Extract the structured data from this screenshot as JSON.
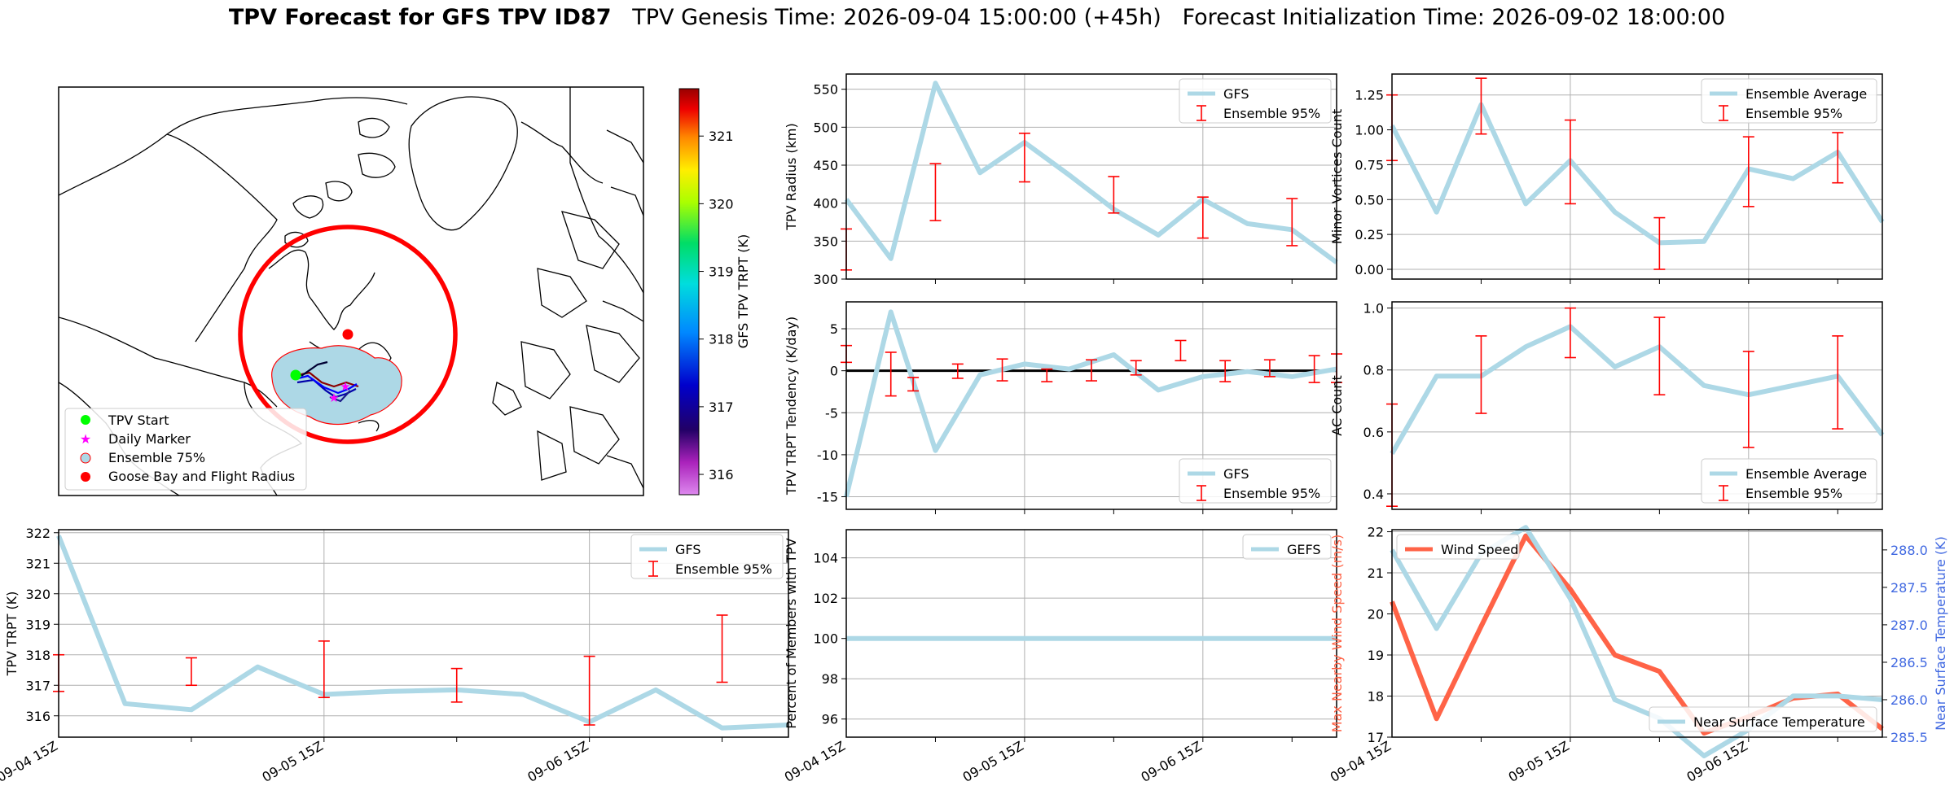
{
  "title": {
    "bold": "TPV Forecast for GFS TPV ID87",
    "genesis": "TPV Genesis Time: 2026-09-04 15:00:00 (+45h)",
    "init": "Forecast Initialization Time: 2026-09-02 18:00:00"
  },
  "colors": {
    "gfs": "#add8e6",
    "errorbar": "#ff0000",
    "wind": "#ff6347",
    "temp_axis": "#4169e1",
    "ring": "#ff0000",
    "start": "#00ff00",
    "daily": "#ff00ff",
    "ensemble75_fill": "#add8e6",
    "ensemble75_edge": "#ff0000",
    "goose_bay": "#ff0000"
  },
  "map": {
    "legend": [
      "TPV Start",
      "Daily Marker",
      "Ensemble 75%",
      "Goose Bay and Flight Radius"
    ],
    "colorbar": {
      "label": "GFS TPV TRPT (K)",
      "ticks": [
        316,
        317,
        318,
        319,
        320,
        321
      ],
      "range": [
        315.7,
        321.7
      ]
    }
  },
  "chart_data": [
    {
      "id": "radius",
      "type": "line",
      "ylabel": "TPV Radius (km)",
      "ylim": [
        300,
        570
      ],
      "yticks": [
        300,
        350,
        400,
        450,
        500,
        550
      ],
      "grid": true,
      "legend_position": "upper right",
      "series": [
        {
          "name": "GFS",
          "x": [
            0,
            0.25,
            0.5,
            0.75,
            1.0,
            1.25,
            1.5,
            1.75,
            2.0,
            2.25,
            2.5,
            2.75
          ],
          "y": [
            405,
            327,
            558,
            440,
            480,
            437,
            392,
            358,
            405,
            373,
            365,
            322
          ]
        }
      ],
      "errorbars": {
        "name": "Ensemble 95%",
        "x": [
          0,
          0.5,
          1.0,
          1.5,
          2.0,
          2.5
        ],
        "low": [
          312,
          377,
          428,
          387,
          354,
          344
        ],
        "high": [
          366,
          452,
          492,
          435,
          408,
          406
        ]
      }
    },
    {
      "id": "minor",
      "type": "line",
      "ylabel": "Minor Vortices Count",
      "ylim": [
        -0.07,
        1.4
      ],
      "yticks": [
        "0.00",
        "0.25",
        "0.50",
        "0.75",
        "1.00",
        "1.25"
      ],
      "grid": true,
      "legend_position": "upper right",
      "series": [
        {
          "name": "Ensemble Average",
          "x": [
            0,
            0.25,
            0.5,
            0.75,
            1.0,
            1.25,
            1.5,
            1.75,
            2.0,
            2.25,
            2.5,
            2.75
          ],
          "y": [
            1.03,
            0.41,
            1.18,
            0.47,
            0.78,
            0.41,
            0.19,
            0.2,
            0.72,
            0.65,
            0.84,
            0.34
          ]
        }
      ],
      "errorbars": {
        "name": "Ensemble 95%",
        "x": [
          0,
          0.5,
          1.0,
          1.5,
          2.0,
          2.5
        ],
        "low": [
          0.78,
          0.97,
          0.47,
          0.0,
          0.45,
          0.62
        ],
        "high": [
          1.25,
          1.37,
          1.07,
          0.37,
          0.95,
          0.98
        ]
      }
    },
    {
      "id": "tendency",
      "type": "line",
      "ylabel": "TPV TRPT Tendency (K/day)",
      "ylim": [
        -16.5,
        8.2
      ],
      "yticks": [
        -15,
        -10,
        -5,
        0,
        5
      ],
      "grid": true,
      "zero_line": true,
      "legend_position": "lower right",
      "series": [
        {
          "name": "GFS",
          "x": [
            0,
            0.25,
            0.5,
            0.75,
            1.0,
            1.25,
            1.5,
            1.75,
            2.0,
            2.25,
            2.5,
            2.75
          ],
          "y": [
            -15.0,
            7.0,
            -9.5,
            -0.5,
            0.8,
            0.2,
            1.9,
            -2.3,
            -0.7,
            -0.1,
            -0.7,
            0.2
          ]
        }
      ],
      "errorbars": {
        "name": "Ensemble 95%",
        "x": [
          0,
          0.25,
          0.375,
          0.625,
          0.875,
          1.125,
          1.375,
          1.625,
          1.875,
          2.125,
          2.375,
          2.625,
          2.75
        ],
        "low": [
          1.0,
          -3.0,
          -2.4,
          -0.9,
          -1.2,
          -1.3,
          -1.2,
          -0.5,
          1.2,
          -1.3,
          -0.7,
          -1.4,
          -1.4
        ],
        "high": [
          3.0,
          2.2,
          -0.8,
          0.8,
          1.4,
          0.2,
          1.3,
          1.2,
          3.6,
          1.2,
          1.3,
          1.8,
          2.0
        ]
      }
    },
    {
      "id": "ac",
      "type": "line",
      "ylabel": "AC Count",
      "ylim": [
        0.35,
        1.02
      ],
      "yticks": [
        "0.4",
        "0.6",
        "0.8",
        "1.0"
      ],
      "grid": true,
      "legend_position": "lower right",
      "series": [
        {
          "name": "Ensemble Average",
          "x": [
            0,
            0.25,
            0.5,
            0.75,
            1.0,
            1.25,
            1.5,
            1.75,
            2.0,
            2.25,
            2.5,
            2.75
          ],
          "y": [
            0.53,
            0.78,
            0.78,
            0.875,
            0.94,
            0.81,
            0.875,
            0.75,
            0.72,
            0.75,
            0.78,
            0.59
          ]
        }
      ],
      "errorbars": {
        "name": "Ensemble 95%",
        "x": [
          0,
          0.5,
          1.0,
          1.5,
          2.0,
          2.5
        ],
        "low": [
          0.36,
          0.66,
          0.84,
          0.72,
          0.55,
          0.61
        ],
        "high": [
          0.69,
          0.91,
          1.0,
          0.97,
          0.86,
          0.91
        ]
      }
    },
    {
      "id": "trpt",
      "type": "line",
      "ylabel": "TPV TRPT (K)",
      "ylim": [
        315.3,
        322.1
      ],
      "yticks": [
        316,
        317,
        318,
        319,
        320,
        321,
        322
      ],
      "grid": true,
      "legend_position": "upper right",
      "xtick_values": [
        0,
        1,
        2
      ],
      "xticks": [
        "09-04 15Z",
        "09-05 15Z",
        "09-06 15Z"
      ],
      "xlim": [
        0,
        2.75
      ],
      "series": [
        {
          "name": "GFS",
          "x": [
            0,
            0.25,
            0.5,
            0.75,
            1.0,
            1.25,
            1.5,
            1.75,
            2.0,
            2.25,
            2.5,
            2.75
          ],
          "y": [
            321.9,
            316.4,
            316.2,
            317.6,
            316.7,
            316.8,
            316.85,
            316.7,
            315.8,
            316.85,
            315.6,
            315.7
          ]
        }
      ],
      "errorbars": {
        "name": "Ensemble 95%",
        "x": [
          0,
          0.5,
          1.0,
          1.5,
          2.0,
          2.5
        ],
        "low": [
          316.8,
          317.0,
          316.6,
          316.45,
          315.7,
          317.1
        ],
        "high": [
          318.0,
          317.9,
          318.45,
          317.55,
          317.95,
          319.3
        ]
      }
    },
    {
      "id": "percent",
      "type": "line",
      "ylabel": "Percent of Members with TPV",
      "ylim": [
        95.1,
        105.4
      ],
      "yticks": [
        96,
        98,
        100,
        102,
        104
      ],
      "grid": true,
      "legend_position": "upper right",
      "xtick_values": [
        0,
        1,
        2
      ],
      "xticks": [
        "09-04 15Z",
        "09-05 15Z",
        "09-06 15Z"
      ],
      "series": [
        {
          "name": "GEFS",
          "x": [
            0,
            2.75
          ],
          "y": [
            100,
            100
          ]
        }
      ]
    },
    {
      "id": "wind_temp",
      "type": "line",
      "ylabel": "Max Nearby Wind Speed (m/s)",
      "ylim": [
        17,
        22.05
      ],
      "yticks": [
        17,
        18,
        19,
        20,
        21,
        22
      ],
      "y2label": "Near Surface Temperature (K)",
      "y2lim": [
        285.5,
        288.27
      ],
      "y2ticks": [
        "285.5",
        "286.0",
        "286.5",
        "287.0",
        "287.5",
        "288.0"
      ],
      "grid": true,
      "xtick_values": [
        0,
        1,
        2
      ],
      "xticks": [
        "09-04 15Z",
        "09-05 15Z",
        "09-06 15Z"
      ],
      "series": [
        {
          "name": "Wind Speed",
          "axis": "left",
          "x": [
            0,
            0.25,
            0.5,
            0.75,
            1.0,
            1.25,
            1.5,
            1.75,
            2.0,
            2.25,
            2.5,
            2.75
          ],
          "y": [
            20.3,
            17.45,
            19.7,
            21.9,
            20.6,
            19.0,
            18.6,
            17.1,
            17.5,
            17.95,
            18.05,
            17.2
          ]
        },
        {
          "name": "Near Surface Temperature",
          "axis": "right",
          "x": [
            0,
            0.25,
            0.5,
            0.75,
            1.0,
            1.25,
            1.5,
            1.75,
            2.0,
            2.25,
            2.5,
            2.75
          ],
          "y": [
            288.0,
            286.95,
            287.95,
            288.3,
            287.35,
            286.0,
            285.75,
            285.25,
            285.6,
            286.05,
            286.05,
            286.0
          ]
        }
      ]
    }
  ]
}
